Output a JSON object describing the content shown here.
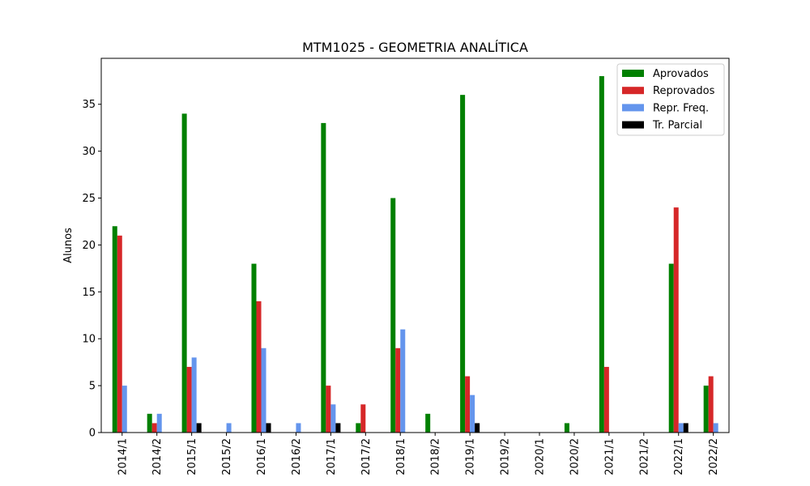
{
  "chart_data": {
    "type": "bar",
    "title": "MTM1025 - GEOMETRIA ANALÍTICA",
    "xlabel": "",
    "ylabel": "Alunos",
    "categories": [
      "2014/1",
      "2014/2",
      "2015/1",
      "2015/2",
      "2016/1",
      "2016/2",
      "2017/1",
      "2017/2",
      "2018/1",
      "2018/2",
      "2019/1",
      "2019/2",
      "2020/1",
      "2020/2",
      "2021/1",
      "2021/2",
      "2022/1",
      "2022/2"
    ],
    "series": [
      {
        "name": "Aprovados",
        "color": "#008000",
        "values": [
          22,
          2,
          34,
          0,
          18,
          0,
          33,
          1,
          25,
          2,
          36,
          0,
          0,
          1,
          38,
          0,
          18,
          5
        ]
      },
      {
        "name": "Reprovados",
        "color": "#d62728",
        "values": [
          21,
          1,
          7,
          0,
          14,
          0,
          5,
          3,
          9,
          0,
          6,
          0,
          0,
          0,
          7,
          0,
          24,
          6
        ]
      },
      {
        "name": "Repr. Freq.",
        "color": "#6495ed",
        "values": [
          5,
          2,
          8,
          1,
          9,
          1,
          3,
          0,
          11,
          0,
          4,
          0,
          0,
          0,
          0,
          0,
          1,
          1
        ]
      },
      {
        "name": "Tr. Parcial",
        "color": "#000000",
        "values": [
          0,
          0,
          1,
          0,
          1,
          0,
          1,
          0,
          0,
          0,
          1,
          0,
          0,
          0,
          0,
          0,
          1,
          0
        ]
      }
    ],
    "ylim": [
      0,
      39.9
    ],
    "yticks": [
      0,
      5,
      10,
      15,
      20,
      25,
      30,
      35
    ],
    "grid": false,
    "legend_position": "top-right"
  }
}
